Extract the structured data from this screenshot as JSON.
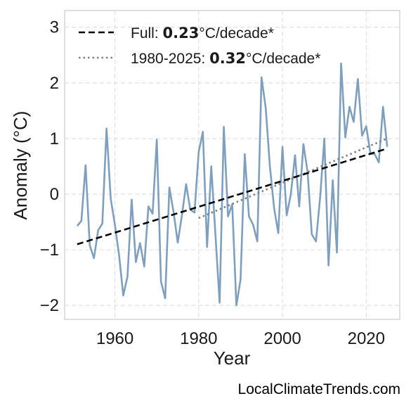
{
  "chart_data": {
    "type": "line",
    "xlabel": "Year",
    "ylabel": "Anomaly (°C)",
    "xlim": [
      1948,
      2028
    ],
    "ylim": [
      -2.25,
      3.3
    ],
    "x_ticks": [
      1960,
      1980,
      2000,
      2020
    ],
    "y_ticks": [
      -2,
      -1,
      0,
      1,
      2,
      3
    ],
    "y_tick_labels": [
      "−2",
      "−1",
      "0",
      "1",
      "2",
      "3"
    ],
    "grid": true,
    "legend_position": "top-left",
    "colors": {
      "series": "#7f9fbf",
      "full_trend": "#000000",
      "recent_trend": "#808080"
    },
    "series": [
      {
        "x": [
          1951,
          1952,
          1953,
          1954,
          1955,
          1956,
          1957,
          1958,
          1959,
          1960,
          1961,
          1962,
          1963,
          1964,
          1965,
          1966,
          1967,
          1968,
          1969,
          1970,
          1971,
          1972,
          1973,
          1974,
          1975,
          1976,
          1977,
          1978,
          1979,
          1980,
          1981,
          1982,
          1983,
          1984,
          1985,
          1986,
          1987,
          1988,
          1989,
          1990,
          1991,
          1992,
          1993,
          1994,
          1995,
          1996,
          1997,
          1998,
          1999,
          2000,
          2001,
          2002,
          2003,
          2004,
          2005,
          2006,
          2007,
          2008,
          2009,
          2010,
          2011,
          2012,
          2013,
          2014,
          2015,
          2016,
          2017,
          2018,
          2019,
          2020,
          2021,
          2022,
          2023,
          2024,
          2025
        ],
        "values": [
          -0.57,
          -0.48,
          0.52,
          -0.92,
          -1.15,
          -0.65,
          -0.53,
          1.18,
          -0.08,
          -0.55,
          -1.1,
          -1.82,
          -1.48,
          -0.1,
          -1.22,
          -0.88,
          -1.3,
          -0.22,
          -0.35,
          0.98,
          -1.57,
          -1.87,
          0.12,
          -0.32,
          -0.87,
          -0.38,
          0.18,
          -0.28,
          -0.33,
          0.76,
          1.12,
          -0.95,
          0.5,
          -0.73,
          -1.95,
          1.21,
          -0.4,
          -0.18,
          -2.0,
          -1.53,
          0.72,
          -0.4,
          -0.55,
          -0.85,
          2.1,
          1.55,
          0.5,
          -0.25,
          -0.7,
          0.85,
          -0.38,
          0.0,
          0.7,
          -0.22,
          0.9,
          0.4,
          -0.72,
          -0.85,
          -0.05,
          1.0,
          -1.28,
          0.25,
          -1.05,
          2.35,
          1.02,
          1.57,
          1.3,
          2.07,
          1.05,
          1.22,
          0.73,
          0.72,
          0.57,
          1.57,
          0.85
        ]
      }
    ],
    "trends": [
      {
        "x": [
          1951,
          2025
        ],
        "y": [
          -0.9,
          0.82
        ]
      },
      {
        "x": [
          1980,
          2025
        ],
        "y": [
          -0.43,
          1.0
        ]
      }
    ],
    "legend": [
      {
        "prefix": "Full: ",
        "value": "0.23",
        "suffix": "°C/decade*"
      },
      {
        "prefix": "1980-2025: ",
        "value": "0.32",
        "suffix": "°C/decade*"
      }
    ]
  },
  "credit": "LocalClimateTrends.com"
}
